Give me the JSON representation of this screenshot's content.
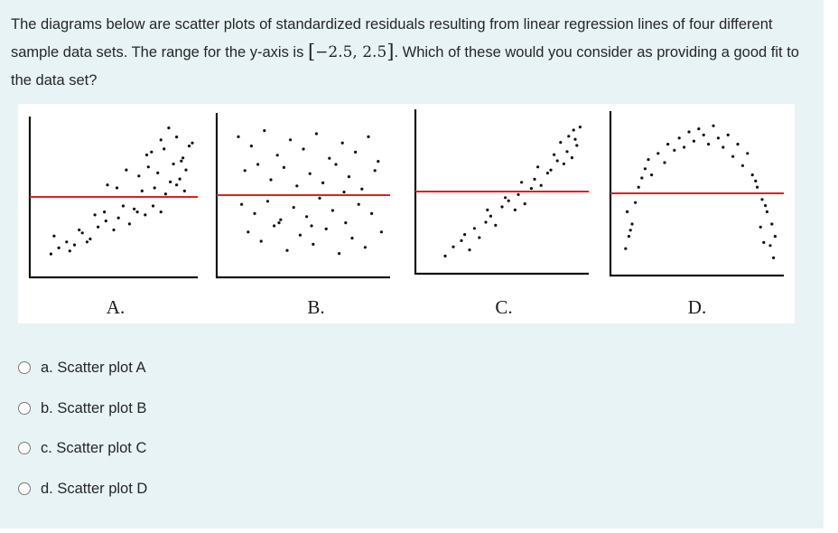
{
  "question": {
    "text_part1": "The diagrams below are scatter plots of standardized residuals resulting from linear regression lines of four different sample data sets. The range for the y-axis is ",
    "range_math": "−2.5, 2.5",
    "text_part2": ". Which of these would you consider as providing a good fit to the data set?"
  },
  "figure": {
    "accent_color": "#e02020",
    "point_color": "#111111",
    "axis_color": "#111111"
  },
  "chart_data": [
    {
      "type": "scatter",
      "title": "A.",
      "xlabel": "",
      "ylabel": "",
      "ylim": [
        -2.5,
        2.5
      ],
      "reference_line": 0,
      "series": [
        {
          "x": [
            1.0,
            1.5,
            2.0,
            1.2,
            2.5,
            3.0,
            3.5,
            2.2,
            2.8,
            3.3,
            4.0,
            4.5,
            5.0,
            3.8,
            4.4,
            5.3,
            6.0,
            6.5,
            5.6,
            6.3,
            7.0,
            7.5,
            8.0,
            6.8,
            7.6,
            8.3,
            9.0,
            8.6,
            9.5,
            9.2,
            4.6,
            5.2,
            5.8,
            6.6,
            7.2,
            7.8,
            8.8,
            9.6,
            7.1,
            8.2,
            9.4,
            8.0,
            9.0,
            9.8,
            8.5,
            7.4,
            9.3,
            10.0
          ],
          "y": [
            -1.9,
            -1.7,
            -1.5,
            -1.3,
            -1.6,
            -1.2,
            -1.4,
            -1.8,
            -1.1,
            -1.5,
            -1.0,
            -0.8,
            -1.1,
            -0.6,
            -0.5,
            -0.7,
            -0.9,
            -0.5,
            -0.3,
            -0.4,
            -0.6,
            -0.3,
            -0.5,
            0.2,
            0.3,
            0.1,
            0.4,
            0.5,
            0.2,
            0.6,
            0.4,
            0.3,
            0.9,
            0.7,
            1.0,
            0.8,
            1.1,
            0.9,
            1.4,
            1.6,
            1.3,
            1.9,
            2.0,
            1.7,
            2.3,
            1.5,
            1.2,
            1.8
          ]
        }
      ]
    },
    {
      "type": "scatter",
      "title": "B.",
      "xlabel": "",
      "ylabel": "",
      "ylim": [
        -2.5,
        2.5
      ],
      "reference_line": 0,
      "series": [
        {
          "x": [
            1.0,
            1.8,
            2.6,
            3.4,
            4.2,
            5.0,
            5.8,
            6.6,
            7.4,
            8.2,
            9.0,
            9.6,
            1.4,
            2.2,
            3.0,
            3.8,
            4.6,
            5.4,
            6.2,
            7.0,
            7.8,
            8.6,
            9.4,
            1.2,
            2.0,
            2.8,
            3.6,
            4.4,
            5.2,
            6.0,
            6.8,
            7.6,
            8.4,
            9.2,
            1.6,
            2.4,
            3.2,
            4.0,
            4.8,
            5.6,
            6.4,
            7.2,
            8.0,
            8.8,
            9.8,
            3.5,
            5.5,
            7.5
          ],
          "y": [
            1.9,
            1.6,
            2.1,
            1.3,
            1.8,
            1.5,
            2.0,
            1.2,
            1.7,
            1.4,
            1.9,
            1.1,
            0.8,
            1.0,
            0.5,
            0.9,
            0.3,
            0.7,
            0.4,
            1.0,
            0.6,
            0.2,
            0.8,
            -0.3,
            -0.6,
            -0.2,
            -0.8,
            -0.4,
            -0.7,
            -0.1,
            -0.5,
            -0.9,
            -0.3,
            -0.6,
            -1.2,
            -1.5,
            -1.0,
            -1.8,
            -1.3,
            -1.6,
            -1.1,
            -1.9,
            -1.4,
            -1.7,
            -1.2,
            -0.9,
            -1.0,
            0.1
          ]
        }
      ]
    },
    {
      "type": "scatter",
      "title": "C.",
      "xlabel": "",
      "ylabel": "",
      "ylim": [
        -2.5,
        2.5
      ],
      "reference_line": 0,
      "series": [
        {
          "x": [
            1.5,
            2.0,
            2.5,
            3.0,
            2.7,
            3.3,
            3.6,
            4.0,
            4.3,
            4.6,
            4.1,
            5.0,
            5.4,
            5.8,
            5.2,
            6.0,
            6.4,
            6.8,
            6.2,
            7.0,
            7.4,
            7.8,
            7.2,
            8.0,
            8.4,
            8.8,
            8.2,
            9.0,
            9.3,
            9.6,
            8.6,
            9.1,
            9.5,
            9.8,
            9.4
          ],
          "y": [
            -2.1,
            -1.8,
            -1.6,
            -1.9,
            -1.4,
            -1.2,
            -1.5,
            -1.0,
            -0.8,
            -1.1,
            -0.6,
            -0.5,
            -0.3,
            -0.6,
            -0.2,
            -0.1,
            -0.4,
            0.1,
            0.3,
            0.4,
            0.2,
            0.6,
            0.8,
            0.7,
            1.0,
            0.9,
            1.2,
            1.3,
            1.1,
            1.5,
            1.6,
            1.8,
            1.7,
            2.1,
            2.0
          ]
        }
      ]
    },
    {
      "type": "scatter",
      "title": "D.",
      "xlabel": "",
      "ylabel": "",
      "ylim": [
        -2.5,
        2.5
      ],
      "reference_line": 0,
      "series": [
        {
          "x": [
            0.6,
            0.8,
            1.0,
            0.7,
            1.2,
            0.9,
            1.4,
            1.6,
            1.8,
            2.2,
            2.0,
            2.6,
            3.0,
            3.2,
            3.6,
            3.9,
            4.2,
            4.5,
            4.8,
            5.1,
            5.4,
            5.7,
            6.0,
            6.3,
            6.6,
            6.9,
            7.2,
            7.5,
            7.8,
            8.1,
            8.4,
            8.7,
            9.0,
            9.3,
            9.6,
            9.8,
            9.5,
            9.2,
            8.9,
            9.1,
            9.7,
            8.6
          ],
          "y": [
            -1.8,
            -1.4,
            -1.0,
            -0.6,
            -0.3,
            -1.2,
            0.2,
            0.5,
            0.8,
            0.6,
            1.1,
            1.3,
            1.0,
            1.6,
            1.4,
            1.8,
            1.5,
            2.0,
            1.7,
            2.1,
            1.9,
            1.6,
            2.2,
            1.8,
            1.5,
            1.9,
            1.2,
            1.6,
            0.9,
            1.3,
            0.6,
            0.2,
            -0.2,
            -0.6,
            -1.0,
            -1.4,
            -1.7,
            -0.4,
            -1.1,
            -1.6,
            -2.1,
            0.4
          ]
        }
      ]
    }
  ],
  "options": [
    {
      "label": "a. Scatter plot A"
    },
    {
      "label": "b. Scatter plot B"
    },
    {
      "label": "c. Scatter plot C"
    },
    {
      "label": "d. Scatter plot D"
    }
  ]
}
